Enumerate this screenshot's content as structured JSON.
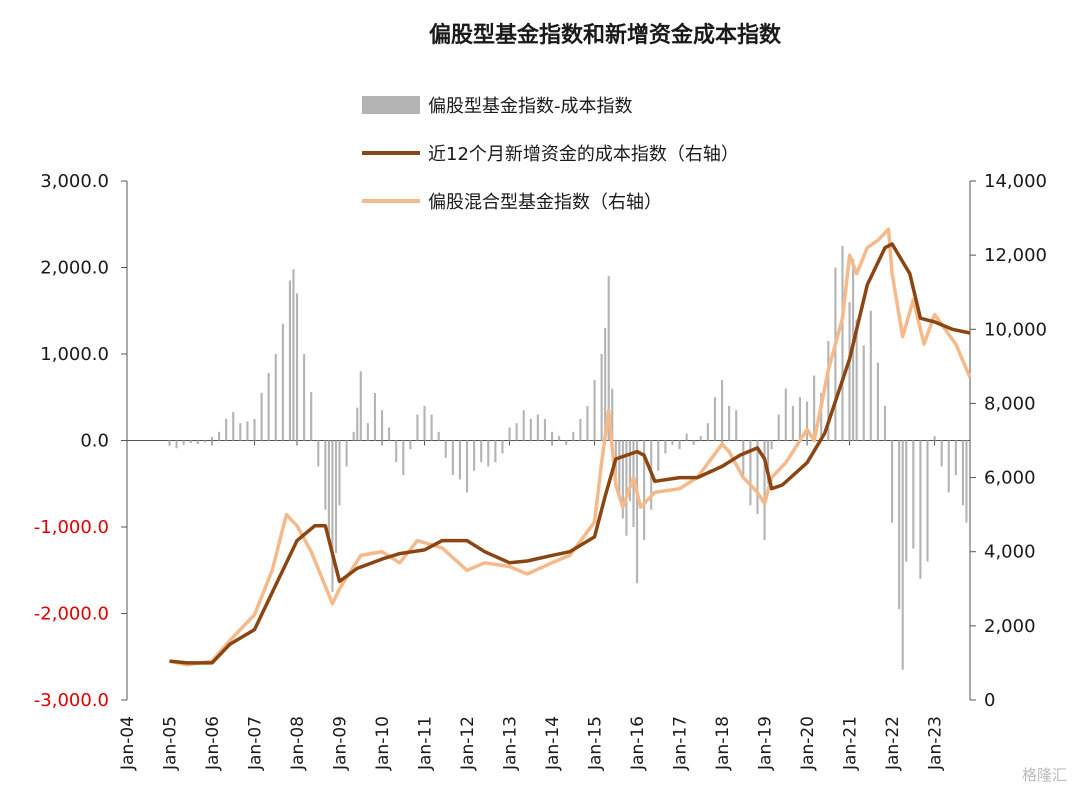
{
  "chart_data": {
    "type": "bar+line",
    "title": "偏股型基金指数和新增资金成本指数",
    "x_ticks": [
      "Jan-04",
      "Jan-05",
      "Jan-06",
      "Jan-07",
      "Jan-08",
      "Jan-09",
      "Jan-10",
      "Jan-11",
      "Jan-12",
      "Jan-13",
      "Jan-14",
      "Jan-15",
      "Jan-16",
      "Jan-17",
      "Jan-18",
      "Jan-19",
      "Jan-20",
      "Jan-21",
      "Jan-22",
      "Jan-23"
    ],
    "x_range": [
      "2004-01",
      "2023-11"
    ],
    "y_left": {
      "range": [
        -3000,
        3000
      ],
      "ticks": [
        "3,000.0",
        "2,000.0",
        "1,000.0",
        "0.0",
        "-1,000.0",
        "-2,000.0",
        "-3,000.0"
      ],
      "negative_color": "#e00000"
    },
    "y_right": {
      "range": [
        0,
        14000
      ],
      "ticks": [
        "14,000",
        "12,000",
        "10,000",
        "8,000",
        "6,000",
        "4,000",
        "2,000",
        "0"
      ]
    },
    "legend_placement": "top-center",
    "series": [
      {
        "name": "偏股型基金指数-成本指数",
        "type": "bar",
        "axis": "left",
        "color": "#b4b4b4",
        "points": [
          [
            "2005-01",
            -60
          ],
          [
            "2005-03",
            -90
          ],
          [
            "2005-05",
            -50
          ],
          [
            "2005-07",
            -30
          ],
          [
            "2005-09",
            -40
          ],
          [
            "2005-11",
            -20
          ],
          [
            "2006-01",
            40
          ],
          [
            "2006-03",
            100
          ],
          [
            "2006-05",
            250
          ],
          [
            "2006-07",
            330
          ],
          [
            "2006-09",
            200
          ],
          [
            "2006-11",
            220
          ],
          [
            "2007-01",
            250
          ],
          [
            "2007-03",
            550
          ],
          [
            "2007-05",
            780
          ],
          [
            "2007-07",
            1000
          ],
          [
            "2007-09",
            1350
          ],
          [
            "2007-11",
            1850
          ],
          [
            "2007-12",
            1980
          ],
          [
            "2008-01",
            1700
          ],
          [
            "2008-03",
            1000
          ],
          [
            "2008-05",
            560
          ],
          [
            "2008-07",
            -300
          ],
          [
            "2008-09",
            -800
          ],
          [
            "2008-10",
            -1100
          ],
          [
            "2008-11",
            -1750
          ],
          [
            "2008-12",
            -1300
          ],
          [
            "2009-01",
            -750
          ],
          [
            "2009-03",
            -300
          ],
          [
            "2009-05",
            100
          ],
          [
            "2009-06",
            380
          ],
          [
            "2009-07",
            800
          ],
          [
            "2009-09",
            200
          ],
          [
            "2009-11",
            550
          ],
          [
            "2010-01",
            350
          ],
          [
            "2010-03",
            150
          ],
          [
            "2010-05",
            -250
          ],
          [
            "2010-07",
            -400
          ],
          [
            "2010-09",
            -100
          ],
          [
            "2010-11",
            300
          ],
          [
            "2011-01",
            400
          ],
          [
            "2011-03",
            300
          ],
          [
            "2011-05",
            100
          ],
          [
            "2011-07",
            -200
          ],
          [
            "2011-09",
            -400
          ],
          [
            "2011-11",
            -450
          ],
          [
            "2012-01",
            -600
          ],
          [
            "2012-03",
            -350
          ],
          [
            "2012-05",
            -250
          ],
          [
            "2012-07",
            -300
          ],
          [
            "2012-09",
            -250
          ],
          [
            "2012-11",
            -150
          ],
          [
            "2013-01",
            150
          ],
          [
            "2013-03",
            200
          ],
          [
            "2013-05",
            350
          ],
          [
            "2013-07",
            250
          ],
          [
            "2013-09",
            300
          ],
          [
            "2013-11",
            250
          ],
          [
            "2014-01",
            100
          ],
          [
            "2014-03",
            50
          ],
          [
            "2014-05",
            -50
          ],
          [
            "2014-07",
            100
          ],
          [
            "2014-09",
            250
          ],
          [
            "2014-11",
            400
          ],
          [
            "2015-01",
            700
          ],
          [
            "2015-03",
            1000
          ],
          [
            "2015-04",
            1300
          ],
          [
            "2015-05",
            1900
          ],
          [
            "2015-06",
            600
          ],
          [
            "2015-07",
            -400
          ],
          [
            "2015-08",
            -650
          ],
          [
            "2015-09",
            -900
          ],
          [
            "2015-10",
            -1100
          ],
          [
            "2015-11",
            -700
          ],
          [
            "2015-12",
            -1000
          ],
          [
            "2016-01",
            -1650
          ],
          [
            "2016-03",
            -1150
          ],
          [
            "2016-05",
            -800
          ],
          [
            "2016-07",
            -350
          ],
          [
            "2016-09",
            -150
          ],
          [
            "2016-11",
            -50
          ],
          [
            "2017-01",
            -100
          ],
          [
            "2017-03",
            80
          ],
          [
            "2017-05",
            -50
          ],
          [
            "2017-07",
            50
          ],
          [
            "2017-09",
            200
          ],
          [
            "2017-11",
            500
          ],
          [
            "2018-01",
            700
          ],
          [
            "2018-03",
            400
          ],
          [
            "2018-05",
            350
          ],
          [
            "2018-07",
            -400
          ],
          [
            "2018-09",
            -750
          ],
          [
            "2018-11",
            -850
          ],
          [
            "2019-01",
            -1150
          ],
          [
            "2019-02",
            -500
          ],
          [
            "2019-03",
            -100
          ],
          [
            "2019-05",
            300
          ],
          [
            "2019-07",
            600
          ],
          [
            "2019-09",
            400
          ],
          [
            "2019-11",
            500
          ],
          [
            "2020-01",
            450
          ],
          [
            "2020-03",
            750
          ],
          [
            "2020-05",
            550
          ],
          [
            "2020-07",
            1150
          ],
          [
            "2020-09",
            2000
          ],
          [
            "2020-11",
            2250
          ],
          [
            "2021-01",
            1600
          ],
          [
            "2021-02",
            2100
          ],
          [
            "2021-03",
            1400
          ],
          [
            "2021-05",
            1100
          ],
          [
            "2021-07",
            1500
          ],
          [
            "2021-09",
            900
          ],
          [
            "2021-11",
            400
          ],
          [
            "2022-01",
            -950
          ],
          [
            "2022-03",
            -1950
          ],
          [
            "2022-04",
            -2650
          ],
          [
            "2022-05",
            -1400
          ],
          [
            "2022-07",
            -1250
          ],
          [
            "2022-09",
            -1600
          ],
          [
            "2022-11",
            -1400
          ],
          [
            "2023-01",
            50
          ],
          [
            "2023-03",
            -300
          ],
          [
            "2023-05",
            -600
          ],
          [
            "2023-07",
            -400
          ],
          [
            "2023-09",
            -750
          ],
          [
            "2023-10",
            -950
          ]
        ]
      },
      {
        "name": "近12个月新增资金的成本指数（右轴）",
        "type": "line",
        "axis": "right",
        "color": "#8b4513",
        "points": [
          [
            "2005-01",
            1050
          ],
          [
            "2005-06",
            1000
          ],
          [
            "2006-01",
            1000
          ],
          [
            "2006-06",
            1500
          ],
          [
            "2007-01",
            1900
          ],
          [
            "2007-06",
            2900
          ],
          [
            "2008-01",
            4300
          ],
          [
            "2008-06",
            4700
          ],
          [
            "2008-09",
            4700
          ],
          [
            "2009-01",
            3200
          ],
          [
            "2009-06",
            3550
          ],
          [
            "2010-01",
            3800
          ],
          [
            "2010-06",
            3950
          ],
          [
            "2011-01",
            4050
          ],
          [
            "2011-06",
            4300
          ],
          [
            "2012-01",
            4300
          ],
          [
            "2012-06",
            4000
          ],
          [
            "2013-01",
            3700
          ],
          [
            "2013-06",
            3750
          ],
          [
            "2014-01",
            3900
          ],
          [
            "2014-06",
            4000
          ],
          [
            "2015-01",
            4400
          ],
          [
            "2015-04",
            5500
          ],
          [
            "2015-07",
            6500
          ],
          [
            "2016-01",
            6700
          ],
          [
            "2016-03",
            6600
          ],
          [
            "2016-06",
            5900
          ],
          [
            "2017-01",
            6000
          ],
          [
            "2017-06",
            6000
          ],
          [
            "2018-01",
            6300
          ],
          [
            "2018-06",
            6600
          ],
          [
            "2018-11",
            6800
          ],
          [
            "2019-01",
            6500
          ],
          [
            "2019-03",
            5700
          ],
          [
            "2019-06",
            5800
          ],
          [
            "2020-01",
            6400
          ],
          [
            "2020-06",
            7200
          ],
          [
            "2021-01",
            9200
          ],
          [
            "2021-06",
            11200
          ],
          [
            "2021-11",
            12200
          ],
          [
            "2022-01",
            12300
          ],
          [
            "2022-06",
            11500
          ],
          [
            "2022-09",
            10300
          ],
          [
            "2023-01",
            10200
          ],
          [
            "2023-06",
            10000
          ],
          [
            "2023-11",
            9900
          ]
        ]
      },
      {
        "name": "偏股混合型基金指数（右轴）",
        "type": "line",
        "axis": "right",
        "color": "#f5b98a",
        "points": [
          [
            "2005-01",
            1050
          ],
          [
            "2005-06",
            950
          ],
          [
            "2006-01",
            1050
          ],
          [
            "2006-06",
            1600
          ],
          [
            "2007-01",
            2300
          ],
          [
            "2007-06",
            3500
          ],
          [
            "2007-10",
            5000
          ],
          [
            "2008-01",
            4700
          ],
          [
            "2008-05",
            4000
          ],
          [
            "2008-11",
            2600
          ],
          [
            "2009-01",
            3000
          ],
          [
            "2009-07",
            3900
          ],
          [
            "2010-01",
            4000
          ],
          [
            "2010-06",
            3700
          ],
          [
            "2010-11",
            4300
          ],
          [
            "2011-06",
            4100
          ],
          [
            "2012-01",
            3500
          ],
          [
            "2012-06",
            3700
          ],
          [
            "2013-01",
            3600
          ],
          [
            "2013-06",
            3400
          ],
          [
            "2014-01",
            3700
          ],
          [
            "2014-06",
            3900
          ],
          [
            "2015-01",
            4800
          ],
          [
            "2015-03",
            6400
          ],
          [
            "2015-05",
            7800
          ],
          [
            "2015-07",
            5800
          ],
          [
            "2015-09",
            5200
          ],
          [
            "2015-12",
            6000
          ],
          [
            "2016-02",
            5200
          ],
          [
            "2016-06",
            5600
          ],
          [
            "2017-01",
            5700
          ],
          [
            "2017-06",
            6000
          ],
          [
            "2018-01",
            6900
          ],
          [
            "2018-03",
            6700
          ],
          [
            "2018-07",
            6000
          ],
          [
            "2018-11",
            5600
          ],
          [
            "2019-01",
            5300
          ],
          [
            "2019-03",
            6000
          ],
          [
            "2019-07",
            6400
          ],
          [
            "2020-01",
            7300
          ],
          [
            "2020-03",
            7000
          ],
          [
            "2020-07",
            8900
          ],
          [
            "2020-11",
            10300
          ],
          [
            "2021-01",
            12000
          ],
          [
            "2021-03",
            11500
          ],
          [
            "2021-06",
            12200
          ],
          [
            "2021-09",
            12400
          ],
          [
            "2021-12",
            12700
          ],
          [
            "2022-01",
            11500
          ],
          [
            "2022-04",
            9800
          ],
          [
            "2022-07",
            10800
          ],
          [
            "2022-10",
            9600
          ],
          [
            "2023-01",
            10400
          ],
          [
            "2023-04",
            10000
          ],
          [
            "2023-07",
            9600
          ],
          [
            "2023-11",
            8700
          ]
        ]
      }
    ]
  },
  "watermark": "格隆汇"
}
